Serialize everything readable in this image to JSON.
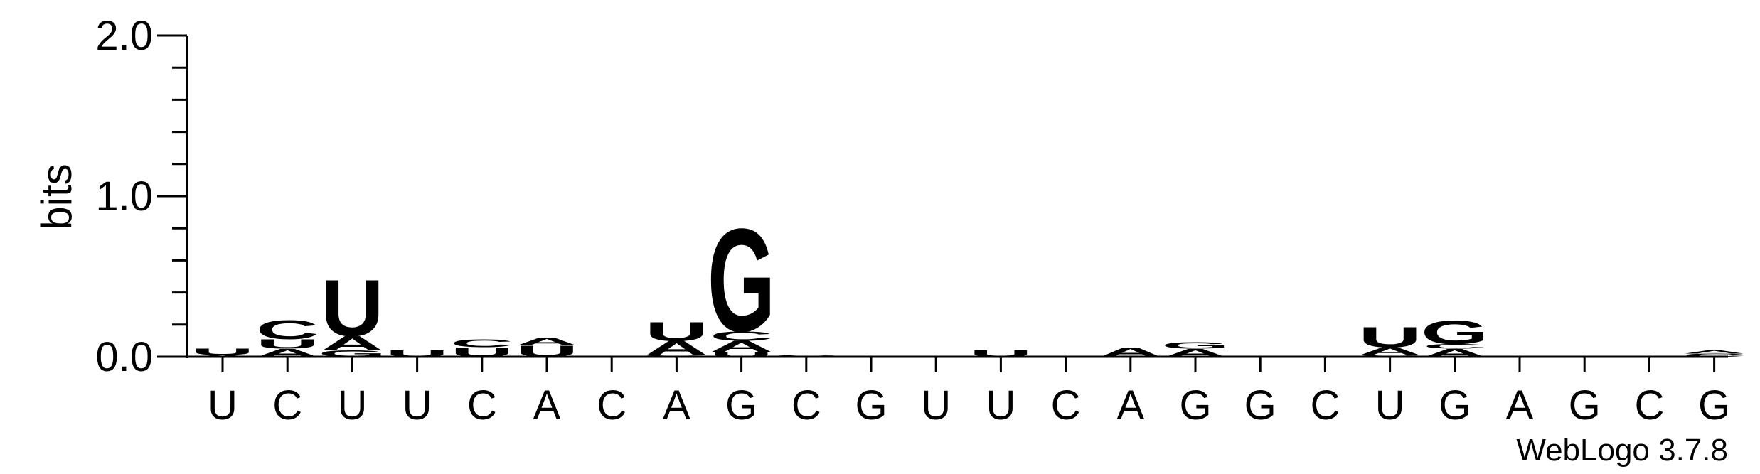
{
  "chart_data": {
    "type": "sequence-logo",
    "ylabel": "bits",
    "ylim": [
      0,
      2.0
    ],
    "yticks": [
      {
        "value": 0.0,
        "label": "0.0"
      },
      {
        "value": 1.0,
        "label": "1.0"
      },
      {
        "value": 2.0,
        "label": "2.0"
      }
    ],
    "minor_tick_step": 0.2,
    "positions": [
      "U",
      "C",
      "U",
      "U",
      "C",
      "A",
      "C",
      "A",
      "G",
      "C",
      "G",
      "U",
      "U",
      "C",
      "A",
      "G",
      "G",
      "C",
      "U",
      "G",
      "A",
      "G",
      "C",
      "G"
    ],
    "colors": {
      "A": "#FF8C00",
      "U": "#FF8C00",
      "C": "#0000FF",
      "G": "#0000FF"
    },
    "stacks": [
      [
        {
          "letter": "A",
          "bits": 0.01
        },
        {
          "letter": "U",
          "bits": 0.04
        }
      ],
      [
        {
          "letter": "A",
          "bits": 0.05
        },
        {
          "letter": "U",
          "bits": 0.06
        },
        {
          "letter": "C",
          "bits": 0.12
        }
      ],
      [
        {
          "letter": "G",
          "bits": 0.04
        },
        {
          "letter": "A",
          "bits": 0.09
        },
        {
          "letter": "U",
          "bits": 0.36
        }
      ],
      [
        {
          "letter": "U",
          "bits": 0.04
        }
      ],
      [
        {
          "letter": "U",
          "bits": 0.06
        },
        {
          "letter": "C",
          "bits": 0.05
        }
      ],
      [
        {
          "letter": "U",
          "bits": 0.07
        },
        {
          "letter": "A",
          "bits": 0.05
        }
      ],
      [],
      [
        {
          "letter": "G",
          "bits": 0.01
        },
        {
          "letter": "A",
          "bits": 0.09
        },
        {
          "letter": "U",
          "bits": 0.12
        }
      ],
      [
        {
          "letter": "U",
          "bits": 0.03
        },
        {
          "letter": "A",
          "bits": 0.07
        },
        {
          "letter": "C",
          "bits": 0.06
        },
        {
          "letter": "G",
          "bits": 0.66
        }
      ],
      [
        {
          "letter": "C",
          "bits": 0.01
        }
      ],
      [],
      [],
      [
        {
          "letter": "U",
          "bits": 0.04
        }
      ],
      [],
      [
        {
          "letter": "A",
          "bits": 0.06
        }
      ],
      [
        {
          "letter": "A",
          "bits": 0.05
        },
        {
          "letter": "G",
          "bits": 0.04
        }
      ],
      [],
      [],
      [
        {
          "letter": "C",
          "bits": 0.01
        },
        {
          "letter": "A",
          "bits": 0.05
        },
        {
          "letter": "U",
          "bits": 0.13
        }
      ],
      [
        {
          "letter": "A",
          "bits": 0.05
        },
        {
          "letter": "C",
          "bits": 0.03
        },
        {
          "letter": "G",
          "bits": 0.15
        }
      ],
      [],
      [],
      [],
      [
        {
          "letter": "C",
          "bits": 0.02
        },
        {
          "letter": "A",
          "bits": 0.02
        }
      ]
    ],
    "watermark": "WebLogo 3.7.8"
  }
}
